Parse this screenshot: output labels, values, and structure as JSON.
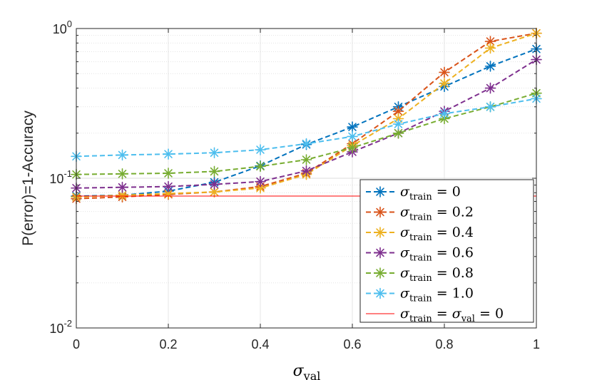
{
  "chart_data": {
    "type": "line",
    "ylabel": "P(error)=1-Accuracy",
    "xlabel": {
      "symbol": "σ",
      "subscript": "val"
    },
    "xlim": [
      0,
      1
    ],
    "ylim": [
      0.01,
      1
    ],
    "yscale": "log",
    "grid": true,
    "legend_position": "bottom-right",
    "xticks": [
      {
        "value": 0,
        "label": "0"
      },
      {
        "value": 0.2,
        "label": "0.2"
      },
      {
        "value": 0.4,
        "label": "0.4"
      },
      {
        "value": 0.6,
        "label": "0.6"
      },
      {
        "value": 0.8,
        "label": "0.8"
      },
      {
        "value": 1,
        "label": "1"
      }
    ],
    "yticks": [
      {
        "value": 0.01,
        "base": "10",
        "exp": "-2"
      },
      {
        "value": 0.1,
        "base": "10",
        "exp": "-1"
      },
      {
        "value": 1,
        "base": "10",
        "exp": "0"
      }
    ],
    "x": [
      0,
      0.1,
      0.2,
      0.3,
      0.4,
      0.5,
      0.6,
      0.7,
      0.8,
      0.9,
      1.0
    ],
    "series": [
      {
        "name": "σtrain = 0",
        "sym": "σ",
        "sub": "train",
        "rhs": " = 0",
        "color": "#0072BD",
        "style": "dashed-star",
        "values": [
          0.076,
          0.077,
          0.082,
          0.094,
          0.121,
          0.168,
          0.22,
          0.3,
          0.41,
          0.56,
          0.73
        ]
      },
      {
        "name": "σtrain = 0.2",
        "sym": "σ",
        "sub": "train",
        "rhs": " = 0.2",
        "color": "#D95319",
        "style": "dashed-star",
        "values": [
          0.073,
          0.075,
          0.078,
          0.081,
          0.088,
          0.108,
          0.17,
          0.28,
          0.51,
          0.82,
          0.93
        ]
      },
      {
        "name": "σtrain = 0.4",
        "sym": "σ",
        "sub": "train",
        "rhs": " = 0.4",
        "color": "#EDB120",
        "style": "dashed-star",
        "values": [
          0.075,
          0.077,
          0.079,
          0.081,
          0.086,
          0.106,
          0.165,
          0.25,
          0.43,
          0.74,
          0.93
        ]
      },
      {
        "name": "σtrain = 0.6",
        "sym": "σ",
        "sub": "train",
        "rhs": " = 0.6",
        "color": "#7E2F8E",
        "style": "dashed-star",
        "values": [
          0.086,
          0.087,
          0.088,
          0.091,
          0.095,
          0.112,
          0.15,
          0.2,
          0.28,
          0.4,
          0.62
        ]
      },
      {
        "name": "σtrain = 0.8",
        "sym": "σ",
        "sub": "train",
        "rhs": " = 0.8",
        "color": "#77AC30",
        "style": "dashed-star",
        "values": [
          0.106,
          0.107,
          0.108,
          0.111,
          0.12,
          0.133,
          0.16,
          0.2,
          0.25,
          0.3,
          0.37
        ]
      },
      {
        "name": "σtrain = 1.0",
        "sym": "σ",
        "sub": "train",
        "rhs": " = 1.0",
        "color": "#4DBEEE",
        "style": "dashed-star",
        "values": [
          0.14,
          0.143,
          0.145,
          0.148,
          0.155,
          0.17,
          0.19,
          0.23,
          0.27,
          0.3,
          0.34
        ]
      },
      {
        "name": "σtrain = σval = 0",
        "sym": "σ",
        "sub": "train",
        "rhs": " = ",
        "sym2": "σ",
        "sub2": "val",
        "rhs2": " = 0",
        "color": "#FF0000",
        "style": "solid",
        "values": [
          0.076,
          0.076,
          0.076,
          0.076,
          0.076,
          0.076,
          0.076,
          0.076,
          0.076,
          0.076,
          0.076
        ]
      }
    ]
  }
}
